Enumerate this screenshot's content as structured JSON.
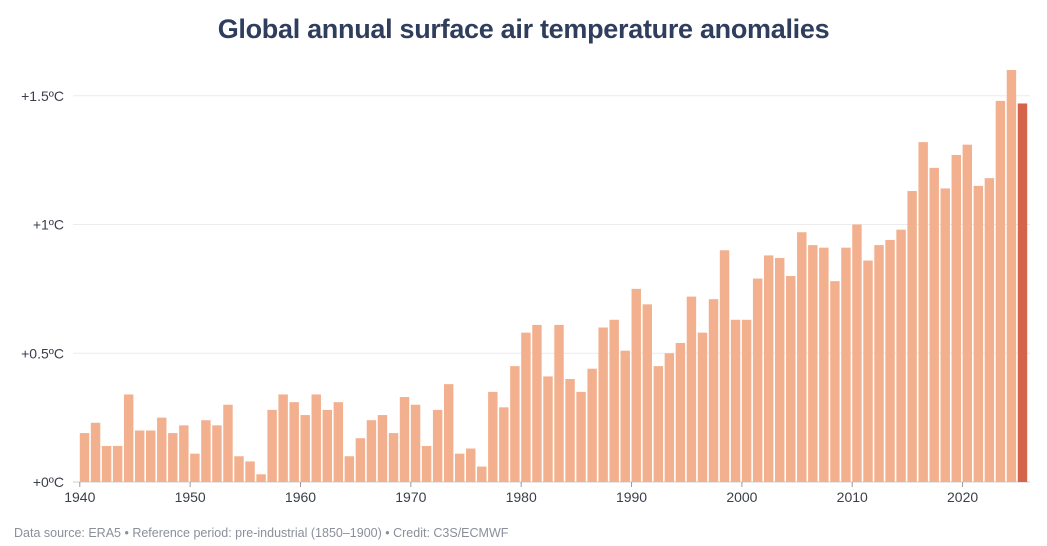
{
  "title": "Global annual surface air temperature anomalies",
  "footer": "Data source: ERA5 • Reference period: pre-industrial (1850–1900) • Credit: C3S/ECMWF",
  "colors": {
    "bar": "#f3b08e",
    "highlight": "#d4644a",
    "grid": "#ececec",
    "title": "#2f3e5c"
  },
  "chart_data": {
    "type": "bar",
    "title": "Global annual surface air temperature anomalies",
    "xlabel": "",
    "ylabel": "",
    "ylim": [
      0,
      1.6
    ],
    "yticks": [
      {
        "value": 0,
        "label": "+0ºC"
      },
      {
        "value": 0.5,
        "label": "+0.5ºC"
      },
      {
        "value": 1,
        "label": "+1ºC"
      },
      {
        "value": 1.5,
        "label": "+1.5ºC"
      }
    ],
    "xticks": [
      1940,
      1950,
      1960,
      1970,
      1980,
      1990,
      2000,
      2010,
      2020
    ],
    "grid": true,
    "highlight_year": 2025,
    "x": [
      1940,
      1941,
      1942,
      1943,
      1944,
      1945,
      1946,
      1947,
      1948,
      1949,
      1950,
      1951,
      1952,
      1953,
      1954,
      1955,
      1956,
      1957,
      1958,
      1959,
      1960,
      1961,
      1962,
      1963,
      1964,
      1965,
      1966,
      1967,
      1968,
      1969,
      1970,
      1971,
      1972,
      1973,
      1974,
      1975,
      1976,
      1977,
      1978,
      1979,
      1980,
      1981,
      1982,
      1983,
      1984,
      1985,
      1986,
      1987,
      1988,
      1989,
      1990,
      1991,
      1992,
      1993,
      1994,
      1995,
      1996,
      1997,
      1998,
      1999,
      2000,
      2001,
      2002,
      2003,
      2004,
      2005,
      2006,
      2007,
      2008,
      2009,
      2010,
      2011,
      2012,
      2013,
      2014,
      2015,
      2016,
      2017,
      2018,
      2019,
      2020,
      2021,
      2022,
      2023,
      2024,
      2025
    ],
    "values": [
      0.19,
      0.23,
      0.14,
      0.14,
      0.34,
      0.2,
      0.2,
      0.25,
      0.19,
      0.22,
      0.11,
      0.24,
      0.22,
      0.3,
      0.1,
      0.08,
      0.03,
      0.28,
      0.34,
      0.31,
      0.26,
      0.34,
      0.28,
      0.31,
      0.1,
      0.17,
      0.24,
      0.26,
      0.19,
      0.33,
      0.3,
      0.14,
      0.28,
      0.38,
      0.11,
      0.13,
      0.06,
      0.35,
      0.29,
      0.45,
      0.58,
      0.61,
      0.41,
      0.61,
      0.4,
      0.35,
      0.44,
      0.6,
      0.63,
      0.51,
      0.75,
      0.69,
      0.45,
      0.5,
      0.54,
      0.72,
      0.58,
      0.71,
      0.9,
      0.63,
      0.63,
      0.79,
      0.88,
      0.87,
      0.8,
      0.97,
      0.92,
      0.91,
      0.78,
      0.91,
      1.0,
      0.86,
      0.92,
      0.94,
      0.98,
      1.13,
      1.32,
      1.22,
      1.14,
      1.27,
      1.31,
      1.15,
      1.18,
      1.48,
      1.6,
      1.47
    ]
  }
}
